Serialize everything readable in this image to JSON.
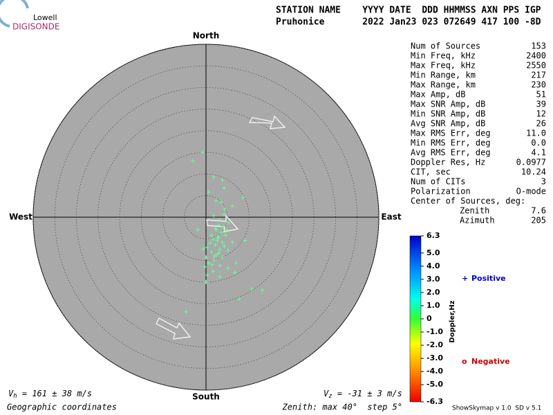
{
  "chart_data": {
    "type": "scatter",
    "logo": {
      "top": "Lowell",
      "bottom": "DIGISONDE"
    },
    "header": {
      "columns": "STATION NAME    YYYY DATE  DDD HHMMSS AXN PPS IGP",
      "values": "Pruhonice       2022 Jan23 023 072649 417 100 -8D"
    },
    "directions": {
      "north": "North",
      "south": "South",
      "west": "West",
      "east": "East"
    },
    "rlim": [
      0,
      40
    ],
    "rticks": [
      5,
      10,
      15,
      20,
      25,
      30,
      35,
      40
    ],
    "point_color": "#66ff99",
    "x": [
      -0.8,
      -3.0,
      1.8,
      3.8,
      4.2,
      0.6,
      8.6,
      2.4,
      3.5,
      6.1,
      4.3,
      1.8,
      -1.9,
      4.2,
      3.2,
      5.1,
      2.2,
      3.5,
      4.5,
      2.9,
      1.6,
      3.8,
      6.1,
      9.0,
      2.2,
      0.3,
      -0.6,
      3.2,
      1.3,
      5.1,
      2.6,
      0.0,
      3.8,
      1.9,
      7.0,
      0.6,
      3.2,
      -0.3,
      5.1,
      1.6,
      6.7,
      0.3,
      3.2,
      0.0,
      10.6,
      13.1,
      7.7,
      -4.6,
      1.3,
      2.9,
      2.6,
      4.2,
      2.4,
      4.0,
      1.0,
      3.0,
      2.0,
      4.8,
      1.4,
      2.7
    ],
    "y": [
      15.0,
      13.0,
      9.3,
      8.6,
      6.7,
      5.8,
      4.5,
      3.8,
      3.5,
      2.6,
      1.9,
      0.3,
      -2.9,
      0.6,
      -0.6,
      -1.3,
      -2.6,
      -3.5,
      -4.2,
      -4.8,
      -5.1,
      -5.8,
      -5.8,
      -5.4,
      -6.4,
      -7.0,
      -7.4,
      -7.4,
      -8.0,
      -7.7,
      -8.6,
      -9.3,
      -9.3,
      -9.9,
      -10.6,
      -10.6,
      -11.2,
      -11.5,
      -11.8,
      -12.5,
      -12.8,
      -13.4,
      -13.8,
      -15.0,
      -16.6,
      -16.9,
      -18.9,
      -21.9,
      -4.2,
      -1.9,
      -5.4,
      -6.7,
      -3.0,
      -2.2,
      -6.0,
      -8.2,
      -9.0,
      -3.0,
      -11.0,
      -4.5
    ],
    "stats": [
      [
        "Num of Sources",
        "153"
      ],
      [
        "Min Freq, kHz",
        "2400"
      ],
      [
        "Max Freq, kHz",
        "2550"
      ],
      [
        "Min Range, km",
        "217"
      ],
      [
        "Max Range, km",
        "230"
      ],
      [
        "Max Amp, dB",
        "51"
      ],
      [
        "Max SNR Amp, dB",
        "39"
      ],
      [
        "Min SNR Amp, dB",
        "12"
      ],
      [
        "Avg SNR Amp, dB",
        "26"
      ],
      [
        "Max RMS Err, deg",
        "11.0"
      ],
      [
        "Min RMS Err, deg",
        "0.0"
      ],
      [
        "Avg RMS Err, deg",
        "4.1"
      ],
      [
        "Doppler Res, Hz",
        "0.0977"
      ],
      [
        "CIT, sec",
        "10.24"
      ],
      [
        "Num of CITs",
        "3"
      ],
      [
        "Polarization",
        "O-mode"
      ],
      [
        "Center of Sources, deg:",
        ""
      ]
    ],
    "center": [
      [
        "Zenith",
        "7.6"
      ],
      [
        "Azimuth",
        "205"
      ]
    ],
    "colorbar": {
      "label": "Doppler,Hz",
      "clim": [
        -6.3,
        6.3
      ],
      "ticks": [
        6.3,
        {
          "value": 5,
          "label": "5.0"
        },
        {
          "value": 4,
          "label": "4.0"
        },
        {
          "value": 3,
          "label": "3.0"
        },
        {
          "value": 2,
          "label": "2.0"
        },
        {
          "value": 1,
          "label": "1.0"
        },
        0,
        {
          "value": -1,
          "label": "-1.0"
        },
        {
          "value": -2,
          "label": "-2.0"
        },
        {
          "value": -3,
          "label": "-3.0"
        },
        {
          "value": -4,
          "label": "-4.0"
        },
        {
          "value": -5,
          "label": "-5.0"
        },
        -6.3
      ]
    },
    "legend": {
      "positive": {
        "symbol": "+",
        "label": "Positive",
        "color": "#0000cc"
      },
      "negative": {
        "symbol": "o",
        "label": "Negative",
        "color": "#cc0000"
      }
    },
    "vh": {
      "symbol": "V",
      "sub": "h",
      "text": " = 161 ± 38 m/s"
    },
    "vz": {
      "symbol": "V",
      "sub": "z",
      "text": " = -31 ± 3 m/s"
    },
    "coords": "Geographic coordinates",
    "zenith_note": "Zenith: max 40°  step 5°",
    "version": "ShowSkymap v 1.0  SD v 5.1"
  }
}
